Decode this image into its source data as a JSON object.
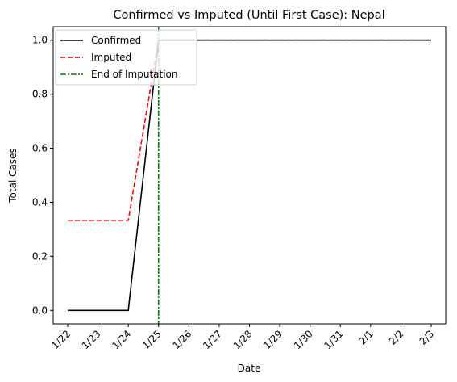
{
  "chart_data": {
    "type": "line",
    "title": "Confirmed vs Imputed (Until First Case): Nepal",
    "xlabel": "Date",
    "ylabel": "Total Cases",
    "categories": [
      "1/22",
      "1/23",
      "1/24",
      "1/25",
      "1/26",
      "1/27",
      "1/28",
      "1/29",
      "1/30",
      "1/31",
      "2/1",
      "2/2",
      "2/3"
    ],
    "ylim": [
      -0.05,
      1.05
    ],
    "yticks": [
      "0.0",
      "0.2",
      "0.4",
      "0.6",
      "0.8",
      "1.0"
    ],
    "grid": false,
    "legend_position": "top-left",
    "series": [
      {
        "name": "Confirmed",
        "values": [
          0,
          0,
          0,
          1,
          1,
          1,
          1,
          1,
          1,
          1,
          1,
          1,
          1
        ],
        "color": "#000000",
        "style": "solid"
      },
      {
        "name": "Imputed",
        "values": [
          0.333,
          0.333,
          0.333,
          1,
          1,
          1,
          1,
          1,
          1,
          1,
          1,
          1,
          1
        ],
        "color": "#ff0000",
        "style": "dashed"
      }
    ],
    "vline": {
      "name": "End of Imputation",
      "at": "1/25",
      "color": "#008000",
      "style": "dashdot"
    }
  }
}
